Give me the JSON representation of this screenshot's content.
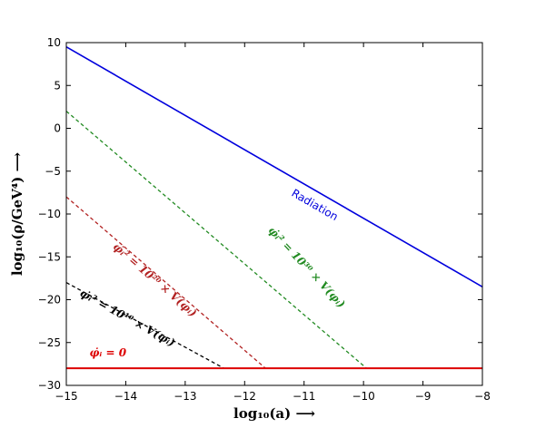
{
  "chart_data": {
    "type": "line",
    "xlabel": "log₁₀(a) ⟶",
    "ylabel": "log₁₀(ρ/GeV⁴) ⟶",
    "xlim": [
      -15,
      -8
    ],
    "ylim": [
      -30,
      10
    ],
    "xticks": [
      "−15",
      "−14",
      "−13",
      "−12",
      "−11",
      "−10",
      "−9",
      "−8"
    ],
    "yticks": [
      "−30",
      "−25",
      "−20",
      "−15",
      "−10",
      "−5",
      "0",
      "5",
      "10"
    ],
    "grid": false,
    "series": [
      {
        "name": "Radiation",
        "style": "solid",
        "color": "#0000dd",
        "x": [
          -15,
          -8
        ],
        "y": [
          9.5,
          -18.5
        ]
      },
      {
        "name": "φ̇ᵢ² = 10³⁰ × V(φᵢ)",
        "style": "dashed",
        "color": "#228b22",
        "x": [
          -15,
          -9.95,
          -8
        ],
        "y": [
          2,
          -28,
          -28
        ]
      },
      {
        "name": "φ̇ᵢ² = 10²⁰ × V(φᵢ)",
        "style": "dashed",
        "color": "#b22222",
        "x": [
          -15,
          -11.65,
          -8
        ],
        "y": [
          -8,
          -28,
          -28
        ]
      },
      {
        "name": "φ̇ᵢ² = 10¹⁰ × V(φᵢ)",
        "style": "dashed",
        "color": "#000000",
        "x": [
          -15,
          -12.35,
          -8
        ],
        "y": [
          -18,
          -28,
          -28
        ]
      },
      {
        "name": "φ̇ᵢ = 0",
        "style": "solid",
        "color": "#dd0000",
        "x": [
          -15,
          -8
        ],
        "y": [
          -28,
          -28
        ]
      }
    ],
    "annotations": [
      {
        "text": "Radiation",
        "x": -10.85,
        "y": -9.3,
        "angle": 30,
        "color": "#0000dd",
        "font": "sans"
      },
      {
        "text": "φ̇ᵢ² = 10³⁰ × V(φᵢ)",
        "x": -11.0,
        "y": -16.5,
        "angle": 47,
        "color": "#228b22",
        "font": "serif"
      },
      {
        "text": "φ̇ᵢ² = 10²⁰ × V(φᵢ)",
        "x": -13.55,
        "y": -18.0,
        "angle": 41,
        "color": "#b22222",
        "font": "serif"
      },
      {
        "text": "φ̇ᵢ² = 10¹⁰ × V(φᵢ)",
        "x": -14.0,
        "y": -22.5,
        "angle": 29,
        "color": "#000000",
        "font": "serif"
      },
      {
        "text": "φ̇ᵢ = 0",
        "x": -14.3,
        "y": -26.6,
        "angle": 0,
        "color": "#dd0000",
        "font": "serif"
      }
    ]
  }
}
